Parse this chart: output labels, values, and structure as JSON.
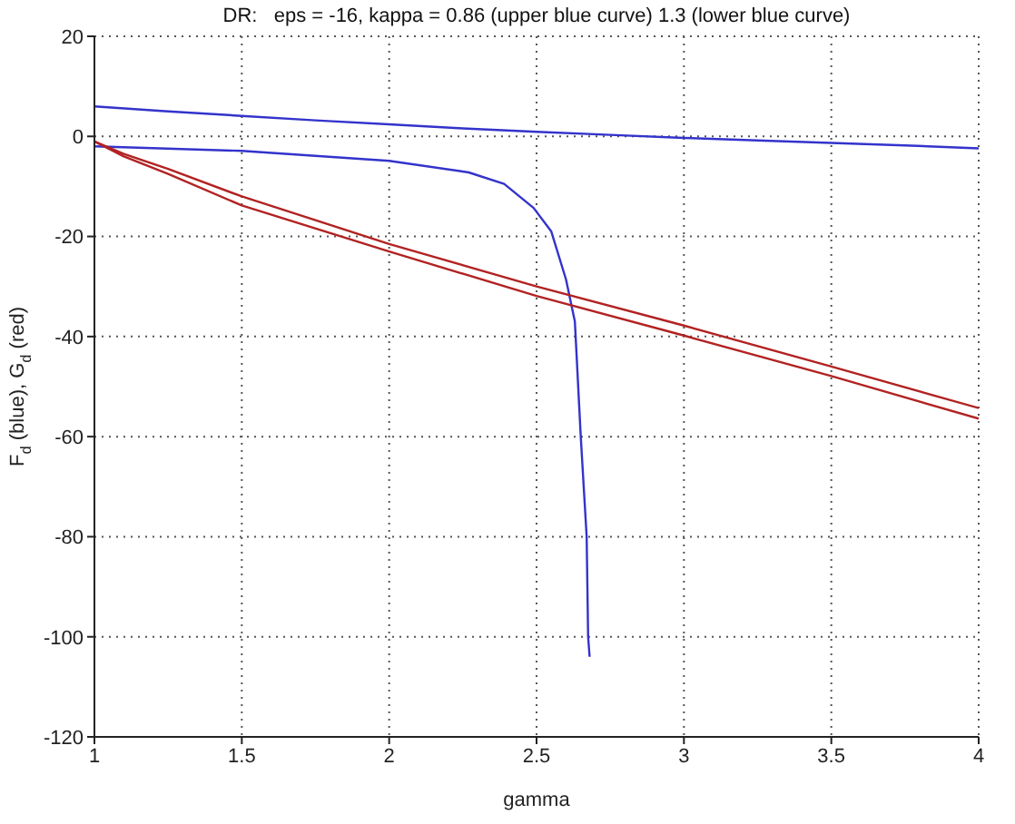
{
  "chart_data": {
    "type": "line",
    "title": "DR:   eps = -16, kappa = 0.86 (upper blue curve) 1.3 (lower blue curve)",
    "xlabel": "gamma",
    "ylabel": "F$_{d}$ (blue), G$_{d}$ (red)",
    "series": [
      {
        "color": "#3333cc",
        "x": [
          1,
          1.25,
          1.5,
          1.75,
          2,
          2.25,
          2.5,
          2.75,
          3,
          3.25,
          3.5,
          3.75,
          4
        ],
        "values": [
          6,
          5,
          4.1,
          3.2,
          2.4,
          1.6,
          0.9,
          0.3,
          -0.3,
          -0.8,
          -1.3,
          -1.8,
          -2.4
        ]
      },
      {
        "color": "#3333cc",
        "x": [
          1,
          1.5,
          2,
          2.27,
          2.39,
          2.49,
          2.55,
          2.6,
          2.63,
          2.65,
          2.67,
          2.675,
          2.68
        ],
        "values": [
          -2,
          -2.9,
          -4.9,
          -7.2,
          -9.5,
          -14.3,
          -19,
          -28.6,
          -37,
          -60,
          -80,
          -100,
          -104
        ]
      },
      {
        "color": "#b22222",
        "x": [
          1,
          1.1,
          1.25,
          1.5,
          2,
          2.5,
          3,
          3.5,
          4
        ],
        "values": [
          -1,
          -3.5,
          -6.5,
          -12,
          -21.5,
          -30,
          -37.8,
          -46,
          -54.3
        ]
      },
      {
        "color": "#b22222",
        "x": [
          1,
          1.1,
          1.25,
          1.5,
          2,
          2.5,
          3,
          3.5,
          4
        ],
        "values": [
          -1,
          -4,
          -7.5,
          -13.8,
          -23,
          -31.9,
          -39.8,
          -47.9,
          -56.4
        ]
      }
    ],
    "xlim": [
      1,
      4
    ],
    "xticks": [
      1,
      1.5,
      2,
      2.5,
      3,
      3.5,
      4
    ],
    "ylim": [
      -120,
      20
    ],
    "yticks": [
      -120,
      -100,
      -80,
      -60,
      -40,
      -20,
      0,
      20
    ],
    "grid": true,
    "line_style": "solid",
    "marker": "none"
  }
}
